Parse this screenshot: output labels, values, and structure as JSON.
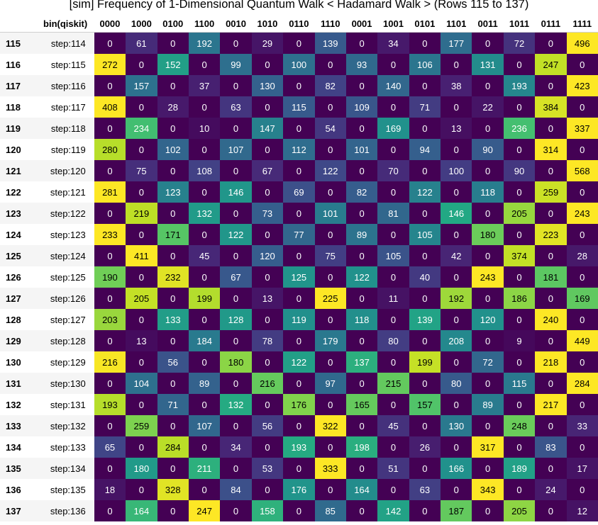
{
  "title": "[sim] Frequency of 1-Dimensional Quantum Walk < Hadamard Walk > (Rows 115 to 137)",
  "chart_data": {
    "type": "heatmap",
    "title": "[sim] Frequency of 1-Dimensional Quantum Walk < Hadamard Walk > (Rows 115 to 137)",
    "index_header": "",
    "row_header": "bin(qiskit)",
    "columns": [
      "0000",
      "1000",
      "0100",
      "1100",
      "0010",
      "1010",
      "0110",
      "1110",
      "0001",
      "1001",
      "0101",
      "1101",
      "0011",
      "1011",
      "0111",
      "1111"
    ],
    "rows": [
      {
        "index": "115",
        "label": "step:114",
        "values": [
          0,
          61,
          0,
          192,
          0,
          29,
          0,
          139,
          0,
          34,
          0,
          177,
          0,
          72,
          0,
          496
        ]
      },
      {
        "index": "116",
        "label": "step:115",
        "values": [
          272,
          0,
          152,
          0,
          99,
          0,
          100,
          0,
          93,
          0,
          106,
          0,
          131,
          0,
          247,
          0
        ]
      },
      {
        "index": "117",
        "label": "step:116",
        "values": [
          0,
          157,
          0,
          37,
          0,
          130,
          0,
          82,
          0,
          140,
          0,
          38,
          0,
          193,
          0,
          423
        ]
      },
      {
        "index": "118",
        "label": "step:117",
        "values": [
          408,
          0,
          28,
          0,
          63,
          0,
          115,
          0,
          109,
          0,
          71,
          0,
          22,
          0,
          384,
          0
        ]
      },
      {
        "index": "119",
        "label": "step:118",
        "values": [
          0,
          234,
          0,
          10,
          0,
          147,
          0,
          54,
          0,
          169,
          0,
          13,
          0,
          236,
          0,
          337
        ]
      },
      {
        "index": "120",
        "label": "step:119",
        "values": [
          280,
          0,
          102,
          0,
          107,
          0,
          112,
          0,
          101,
          0,
          94,
          0,
          90,
          0,
          314,
          0
        ]
      },
      {
        "index": "121",
        "label": "step:120",
        "values": [
          0,
          75,
          0,
          108,
          0,
          67,
          0,
          122,
          0,
          70,
          0,
          100,
          0,
          90,
          0,
          568
        ]
      },
      {
        "index": "122",
        "label": "step:121",
        "values": [
          281,
          0,
          123,
          0,
          146,
          0,
          69,
          0,
          82,
          0,
          122,
          0,
          118,
          0,
          259,
          0
        ]
      },
      {
        "index": "123",
        "label": "step:122",
        "values": [
          0,
          219,
          0,
          132,
          0,
          73,
          0,
          101,
          0,
          81,
          0,
          146,
          0,
          205,
          0,
          243
        ]
      },
      {
        "index": "124",
        "label": "step:123",
        "values": [
          233,
          0,
          171,
          0,
          122,
          0,
          77,
          0,
          89,
          0,
          105,
          0,
          180,
          0,
          223,
          0
        ]
      },
      {
        "index": "125",
        "label": "step:124",
        "values": [
          0,
          411,
          0,
          45,
          0,
          120,
          0,
          75,
          0,
          105,
          0,
          42,
          0,
          374,
          0,
          28
        ]
      },
      {
        "index": "126",
        "label": "step:125",
        "values": [
          190,
          0,
          232,
          0,
          67,
          0,
          125,
          0,
          122,
          0,
          40,
          0,
          243,
          0,
          181,
          0
        ]
      },
      {
        "index": "127",
        "label": "step:126",
        "values": [
          0,
          205,
          0,
          199,
          0,
          13,
          0,
          225,
          0,
          11,
          0,
          192,
          0,
          186,
          0,
          169
        ]
      },
      {
        "index": "128",
        "label": "step:127",
        "values": [
          203,
          0,
          133,
          0,
          128,
          0,
          119,
          0,
          118,
          0,
          139,
          0,
          120,
          0,
          240,
          0
        ]
      },
      {
        "index": "129",
        "label": "step:128",
        "values": [
          0,
          13,
          0,
          184,
          0,
          78,
          0,
          179,
          0,
          80,
          0,
          208,
          0,
          9,
          0,
          449
        ]
      },
      {
        "index": "130",
        "label": "step:129",
        "values": [
          216,
          0,
          56,
          0,
          180,
          0,
          122,
          0,
          137,
          0,
          199,
          0,
          72,
          0,
          218,
          0
        ]
      },
      {
        "index": "131",
        "label": "step:130",
        "values": [
          0,
          104,
          0,
          89,
          0,
          216,
          0,
          97,
          0,
          215,
          0,
          80,
          0,
          115,
          0,
          284
        ]
      },
      {
        "index": "132",
        "label": "step:131",
        "values": [
          193,
          0,
          71,
          0,
          132,
          0,
          176,
          0,
          165,
          0,
          157,
          0,
          89,
          0,
          217,
          0
        ]
      },
      {
        "index": "133",
        "label": "step:132",
        "values": [
          0,
          259,
          0,
          107,
          0,
          56,
          0,
          322,
          0,
          45,
          0,
          130,
          0,
          248,
          0,
          33
        ]
      },
      {
        "index": "134",
        "label": "step:133",
        "values": [
          65,
          0,
          284,
          0,
          34,
          0,
          193,
          0,
          198,
          0,
          26,
          0,
          317,
          0,
          83,
          0
        ]
      },
      {
        "index": "135",
        "label": "step:134",
        "values": [
          0,
          180,
          0,
          211,
          0,
          53,
          0,
          333,
          0,
          51,
          0,
          166,
          0,
          189,
          0,
          17
        ]
      },
      {
        "index": "136",
        "label": "step:135",
        "values": [
          18,
          0,
          328,
          0,
          84,
          0,
          176,
          0,
          164,
          0,
          63,
          0,
          343,
          0,
          24,
          0
        ]
      },
      {
        "index": "137",
        "label": "step:136",
        "values": [
          0,
          164,
          0,
          247,
          0,
          158,
          0,
          85,
          0,
          142,
          0,
          187,
          0,
          205,
          0,
          12
        ]
      }
    ],
    "colormap": "viridis, scaled per row from row minimum to row maximum"
  }
}
